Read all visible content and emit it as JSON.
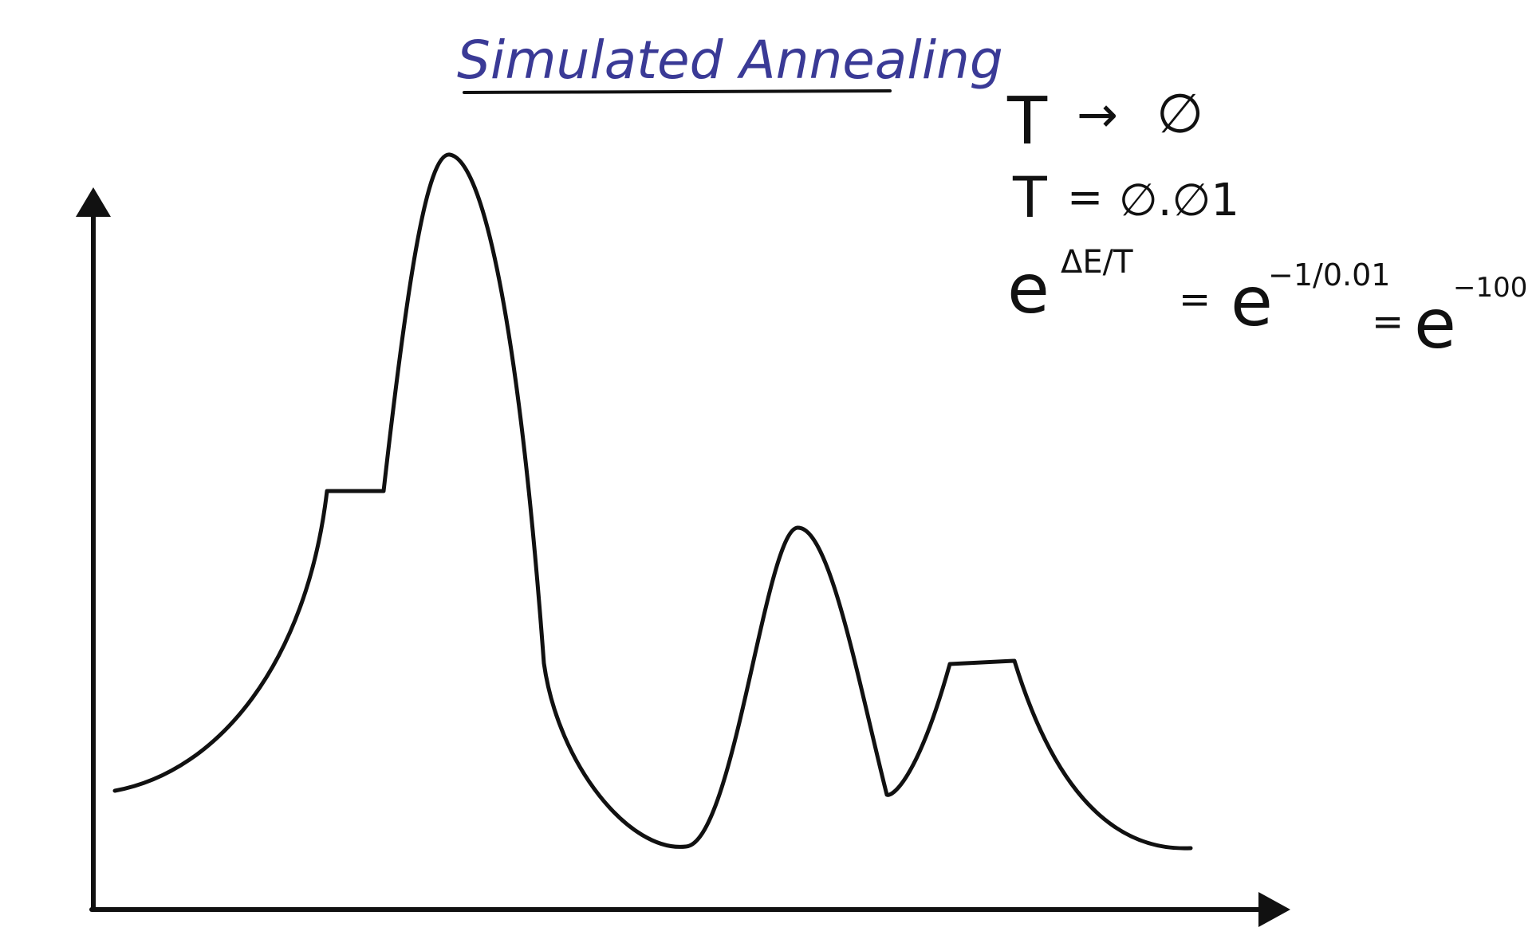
{
  "title": "Simulated Annealing",
  "notes": {
    "line1": {
      "var": "T",
      "arrow": "→",
      "target": "∅"
    },
    "line2": {
      "var": "T",
      "eq": "=",
      "value": "∅.∅1"
    },
    "line3": {
      "base1": "e",
      "exp1": "ΔE/T",
      "eq1": "=",
      "base2": "e",
      "exp2": "−1/0.01",
      "eq2": "=",
      "base3": "e",
      "exp3": "−100"
    }
  },
  "colors": {
    "title": "#3a3a96",
    "ink": "#111111",
    "background": "#ffffff"
  }
}
